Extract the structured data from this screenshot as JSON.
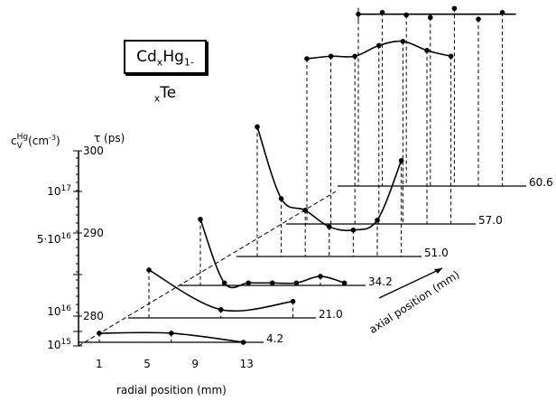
{
  "chart_data": {
    "type": "line",
    "title": "CdxHg1-xTe",
    "title_parts": {
      "a": "Cd",
      "b": "x",
      "c": "Hg",
      "d": "1-x",
      "e": "Te"
    },
    "xlabel": "radial position (mm)",
    "zlabel": "axial position (mm)",
    "ylabel_left": {
      "main": "c",
      "sup": "Hg",
      "sub": "V",
      "unit": "(cm",
      "unit_sup": "-3",
      "unit_end": ")"
    },
    "ylabel_right": "τ (ps)",
    "x_ticks": [
      "1",
      "5",
      "9",
      "13"
    ],
    "tau_ticks": [
      "300",
      "290",
      "280"
    ],
    "conc_ticks": [
      {
        "base": "10",
        "exp": "17",
        "pre": ""
      },
      {
        "base": "10",
        "exp": "16",
        "pre": "5·"
      },
      {
        "base": "10",
        "exp": "16",
        "pre": ""
      },
      {
        "base": "10",
        "exp": "15",
        "pre": ""
      }
    ],
    "ylim_tau": [
      276.7,
      300
    ],
    "series": [
      {
        "name": "4.2",
        "x": [
          1,
          7,
          13
        ],
        "y": [
          277.8,
          277.8,
          276.7
        ]
      },
      {
        "name": "21.0",
        "x": [
          1,
          7,
          13
        ],
        "y": [
          282.5,
          277.7,
          278.7
        ]
      },
      {
        "name": "34.2",
        "x": [
          1,
          3,
          5,
          7,
          9,
          11,
          13
        ],
        "y": [
          284.7,
          277.0,
          277.0,
          277.0,
          277.0,
          277.8,
          277.0
        ]
      },
      {
        "name": "51.0",
        "x": [
          1,
          3,
          5,
          7,
          9,
          11,
          13
        ],
        "y": [
          292.4,
          283.7,
          282.3,
          280.3,
          279.9,
          281.1,
          288.3
        ]
      },
      {
        "name": "57.0",
        "x": [
          1,
          3,
          5,
          7,
          9,
          11,
          13
        ],
        "y": [
          296.7,
          297.0,
          297.0,
          298.3,
          298.8,
          297.7,
          297.0
        ]
      },
      {
        "name": "60.6",
        "x": [
          1,
          3,
          5,
          7,
          9,
          11,
          13
        ],
        "y": [
          297.5,
          297.7,
          297.4,
          297.1,
          298.2,
          296.9,
          297.7
        ]
      }
    ]
  }
}
